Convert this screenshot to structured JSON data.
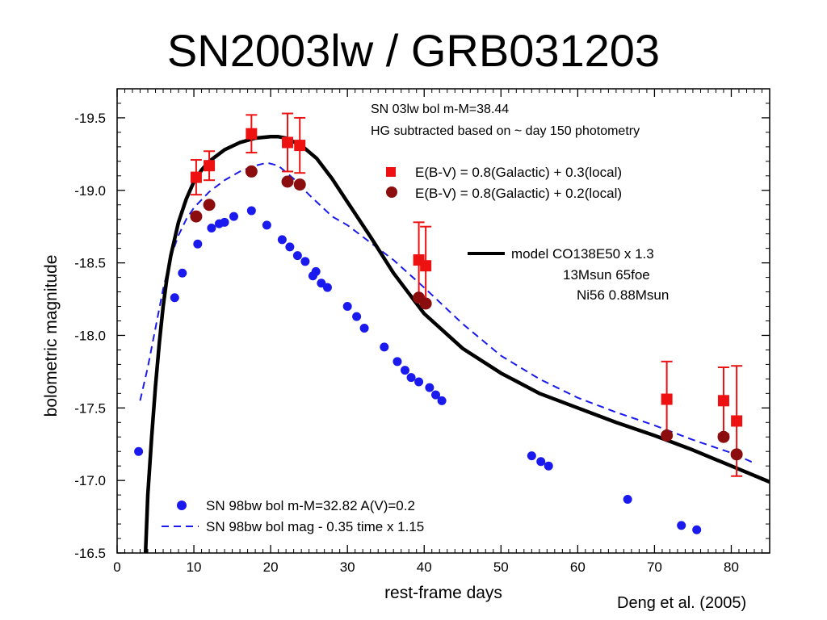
{
  "title": "SN2003lw / GRB031203",
  "credit": "Deng et al. (2005)",
  "colors": {
    "red": "#ee1111",
    "darkred": "#8b0d0d",
    "blue": "#1a1aee",
    "black": "#000000"
  },
  "chart_data": {
    "type": "scatter",
    "xlabel": "rest-frame days",
    "ylabel": "bolometric magnitude",
    "xlim": [
      0,
      85
    ],
    "ylim": [
      -16.5,
      -19.7
    ],
    "y_inverted": true,
    "xticks": [
      0,
      10,
      20,
      30,
      40,
      50,
      60,
      70,
      80
    ],
    "xtick_labels": [
      "0",
      "10",
      "20",
      "30",
      "40",
      "50",
      "60",
      "70",
      "80"
    ],
    "yticks": [
      -19.5,
      -19.0,
      -18.5,
      -18.0,
      -17.5,
      -17.0,
      -16.5
    ],
    "ytick_labels": [
      "-19.5",
      "-19.0",
      "-18.5",
      "-18.0",
      "-17.5",
      "-17.0",
      "-16.5"
    ],
    "grid": false,
    "annotations": [
      "SN 03lw bol m-M=38.44",
      "HG subtracted based on ~ day 150 photometry"
    ],
    "model_annotation": [
      "model  CO138E50 x 1.3",
      "13Msun    65foe",
      "Ni56  0.88Msun"
    ],
    "series": [
      {
        "name": "E(B-V) = 0.8(Galactic) + 0.3(local)",
        "marker": "square",
        "color": "#ee1111",
        "points": [
          {
            "x": 10.3,
            "y": -19.09,
            "err": 0.12
          },
          {
            "x": 12.0,
            "y": -19.17,
            "err": 0.1
          },
          {
            "x": 17.5,
            "y": -19.39,
            "err": 0.13
          },
          {
            "x": 22.2,
            "y": -19.33,
            "err": 0.2
          },
          {
            "x": 23.8,
            "y": -19.31,
            "err": 0.19
          },
          {
            "x": 39.3,
            "y": -18.52,
            "err": 0.26
          },
          {
            "x": 40.2,
            "y": -18.48,
            "err": 0.27
          },
          {
            "x": 71.6,
            "y": -17.56,
            "err": 0.26
          },
          {
            "x": 79.0,
            "y": -17.55,
            "err": 0.23
          },
          {
            "x": 80.7,
            "y": -17.41,
            "err": 0.38
          }
        ]
      },
      {
        "name": "E(B-V) = 0.8(Galactic) + 0.2(local)",
        "marker": "circle",
        "color": "#8b0d0d",
        "points": [
          {
            "x": 10.3,
            "y": -18.82
          },
          {
            "x": 12.0,
            "y": -18.9
          },
          {
            "x": 17.5,
            "y": -19.13
          },
          {
            "x": 22.2,
            "y": -19.06
          },
          {
            "x": 23.8,
            "y": -19.04
          },
          {
            "x": 39.3,
            "y": -18.26
          },
          {
            "x": 40.2,
            "y": -18.22
          },
          {
            "x": 71.6,
            "y": -17.31
          },
          {
            "x": 79.0,
            "y": -17.3
          },
          {
            "x": 80.7,
            "y": -17.18
          }
        ]
      },
      {
        "name": "SN 98bw  bol m-M=32.82 A(V)=0.2",
        "marker": "circle",
        "color": "#1a1aee",
        "points": [
          {
            "x": 2.8,
            "y": -17.2
          },
          {
            "x": 7.5,
            "y": -18.26
          },
          {
            "x": 8.5,
            "y": -18.43
          },
          {
            "x": 10.5,
            "y": -18.63
          },
          {
            "x": 12.3,
            "y": -18.74
          },
          {
            "x": 13.3,
            "y": -18.77
          },
          {
            "x": 14.0,
            "y": -18.78
          },
          {
            "x": 15.2,
            "y": -18.82
          },
          {
            "x": 17.5,
            "y": -18.86
          },
          {
            "x": 19.5,
            "y": -18.76
          },
          {
            "x": 21.5,
            "y": -18.66
          },
          {
            "x": 22.5,
            "y": -18.61
          },
          {
            "x": 23.5,
            "y": -18.55
          },
          {
            "x": 24.5,
            "y": -18.51
          },
          {
            "x": 25.5,
            "y": -18.41
          },
          {
            "x": 25.9,
            "y": -18.44
          },
          {
            "x": 26.6,
            "y": -18.36
          },
          {
            "x": 27.4,
            "y": -18.33
          },
          {
            "x": 30.0,
            "y": -18.2
          },
          {
            "x": 31.2,
            "y": -18.13
          },
          {
            "x": 32.2,
            "y": -18.05
          },
          {
            "x": 34.8,
            "y": -17.92
          },
          {
            "x": 36.5,
            "y": -17.82
          },
          {
            "x": 37.5,
            "y": -17.76
          },
          {
            "x": 38.3,
            "y": -17.71
          },
          {
            "x": 39.3,
            "y": -17.68
          },
          {
            "x": 40.7,
            "y": -17.64
          },
          {
            "x": 41.5,
            "y": -17.59
          },
          {
            "x": 42.3,
            "y": -17.55
          },
          {
            "x": 54.0,
            "y": -17.17
          },
          {
            "x": 55.2,
            "y": -17.13
          },
          {
            "x": 56.2,
            "y": -17.1
          },
          {
            "x": 66.5,
            "y": -16.87
          },
          {
            "x": 73.5,
            "y": -16.69
          },
          {
            "x": 75.5,
            "y": -16.66
          }
        ]
      },
      {
        "name": "SN 98bw  bol mag - 0.35   time x 1.15",
        "style": "dashed",
        "color": "#1a1aee",
        "x": [
          3,
          4,
          5,
          6,
          7,
          8,
          9,
          10,
          12,
          14,
          16,
          18,
          19.5,
          21,
          23,
          25,
          28,
          30,
          33,
          36,
          40,
          45,
          50,
          55,
          60,
          65,
          70,
          75,
          80,
          83
        ],
        "y": [
          -17.55,
          -17.78,
          -18.05,
          -18.32,
          -18.54,
          -18.69,
          -18.8,
          -18.88,
          -18.99,
          -19.07,
          -19.13,
          -19.17,
          -19.19,
          -19.17,
          -19.08,
          -18.97,
          -18.82,
          -18.76,
          -18.64,
          -18.52,
          -18.33,
          -18.08,
          -17.86,
          -17.7,
          -17.57,
          -17.47,
          -17.38,
          -17.28,
          -17.19,
          -17.12
        ]
      },
      {
        "name": "model  CO138E50 x 1.3",
        "style": "solid-thick",
        "color": "#000000",
        "x": [
          3.7,
          4,
          4.5,
          5,
          5.5,
          6,
          6.5,
          7,
          8,
          9,
          10,
          11,
          12,
          14,
          16,
          18,
          20,
          21,
          22,
          24,
          26,
          28,
          30,
          33,
          36,
          40,
          45,
          50,
          55,
          60,
          65,
          70,
          75,
          80,
          85
        ],
        "y": [
          -16.5,
          -16.9,
          -17.3,
          -17.65,
          -17.95,
          -18.2,
          -18.4,
          -18.55,
          -18.78,
          -18.94,
          -19.06,
          -19.14,
          -19.2,
          -19.28,
          -19.33,
          -19.36,
          -19.37,
          -19.37,
          -19.36,
          -19.31,
          -19.22,
          -19.08,
          -18.92,
          -18.68,
          -18.43,
          -18.15,
          -17.91,
          -17.74,
          -17.6,
          -17.5,
          -17.4,
          -17.31,
          -17.21,
          -17.1,
          -16.99
        ]
      }
    ]
  }
}
